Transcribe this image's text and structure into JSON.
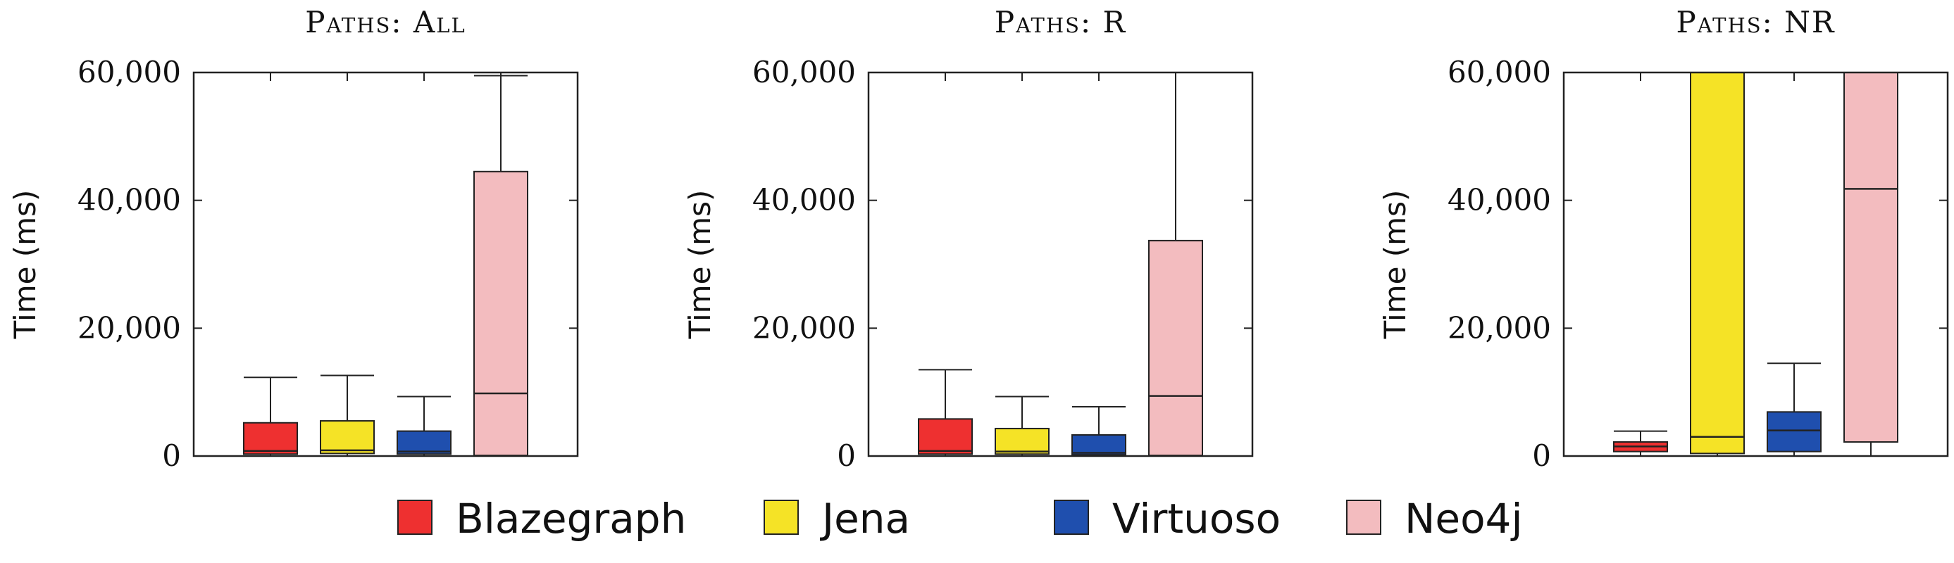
{
  "colors": {
    "Blazegraph": "#ee3030",
    "Jena": "#f5e326",
    "Virtuoso": "#1f4fae",
    "Neo4j": "#f3bcbf",
    "axis": "#222222"
  },
  "legend": {
    "position": "bottom",
    "items": [
      "Blazegraph",
      "Jena",
      "Virtuoso",
      "Neo4j"
    ]
  },
  "chart_data": [
    {
      "type": "box",
      "title": "Paths: All",
      "ylabel": "Time (ms)",
      "ylim": [
        0,
        60000
      ],
      "yticks": [
        0,
        20000,
        40000,
        60000
      ],
      "ytick_labels": [
        "0",
        "20,000",
        "40,000",
        "60,000"
      ],
      "series": [
        {
          "name": "Blazegraph",
          "whisker_low": 0,
          "q1": 300,
          "median": 800,
          "q3": 5200,
          "whisker_high": 12300
        },
        {
          "name": "Jena",
          "whisker_low": 0,
          "q1": 400,
          "median": 900,
          "q3": 5500,
          "whisker_high": 12600
        },
        {
          "name": "Virtuoso",
          "whisker_low": 0,
          "q1": 300,
          "median": 700,
          "q3": 3900,
          "whisker_high": 9300
        },
        {
          "name": "Neo4j",
          "whisker_low": 0,
          "q1": 100,
          "median": 9800,
          "q3": 44500,
          "whisker_high": 59500
        }
      ]
    },
    {
      "type": "box",
      "title": "Paths: R",
      "ylabel": "Time (ms)",
      "ylim": [
        0,
        60000
      ],
      "yticks": [
        0,
        20000,
        40000,
        60000
      ],
      "ytick_labels": [
        "0",
        "20,000",
        "40,000",
        "60,000"
      ],
      "series": [
        {
          "name": "Blazegraph",
          "whisker_low": 0,
          "q1": 300,
          "median": 800,
          "q3": 5800,
          "whisker_high": 13500
        },
        {
          "name": "Jena",
          "whisker_low": 0,
          "q1": 300,
          "median": 700,
          "q3": 4300,
          "whisker_high": 9300
        },
        {
          "name": "Virtuoso",
          "whisker_low": 0,
          "q1": 200,
          "median": 500,
          "q3": 3300,
          "whisker_high": 7700
        },
        {
          "name": "Neo4j",
          "whisker_low": 0,
          "q1": 100,
          "median": 9400,
          "q3": 33700,
          "whisker_high": 60000
        }
      ]
    },
    {
      "type": "box",
      "title": "Paths: NR",
      "ylabel": "Time (ms)",
      "ylim": [
        0,
        60000
      ],
      "yticks": [
        0,
        20000,
        40000,
        60000
      ],
      "ytick_labels": [
        "0",
        "20,000",
        "40,000",
        "60,000"
      ],
      "series": [
        {
          "name": "Blazegraph",
          "whisker_low": 0,
          "q1": 700,
          "median": 1500,
          "q3": 2200,
          "whisker_high": 3900
        },
        {
          "name": "Jena",
          "whisker_low": 0,
          "q1": 400,
          "median": 3000,
          "q3": 60000,
          "whisker_high": 60000
        },
        {
          "name": "Virtuoso",
          "whisker_low": 0,
          "q1": 700,
          "median": 4000,
          "q3": 6900,
          "whisker_high": 14500
        },
        {
          "name": "Neo4j",
          "whisker_low": 0,
          "q1": 2200,
          "median": 41800,
          "q3": 60000,
          "whisker_high": 60000
        }
      ]
    }
  ]
}
